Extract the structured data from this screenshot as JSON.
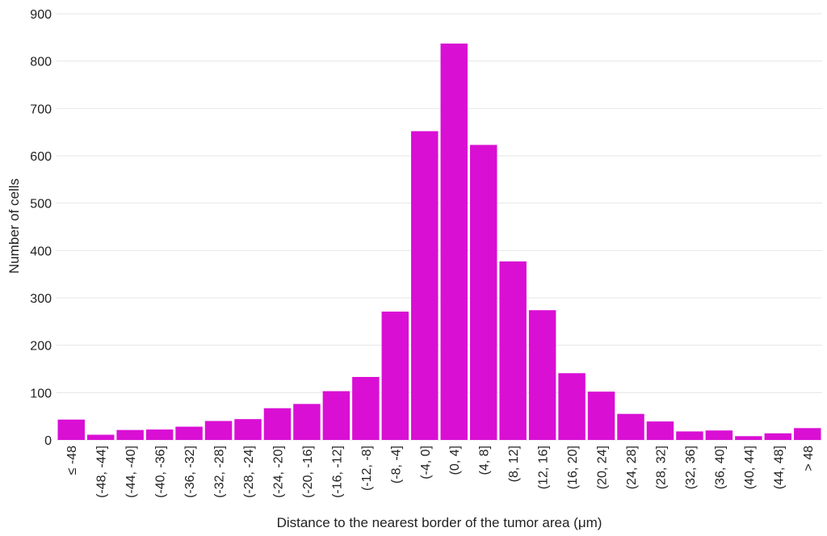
{
  "chart_data": {
    "type": "bar",
    "title": "",
    "xlabel": "Distance to the nearest border of the tumor area (μm)",
    "ylabel": "Number of cells",
    "ylim": [
      0,
      900
    ],
    "yticks": [
      "0",
      "100",
      "200",
      "300",
      "400",
      "500",
      "600",
      "700",
      "800",
      "900"
    ],
    "grid": true,
    "legend": "none",
    "bar_color": "#d90fd4",
    "categories": [
      "≤ -48",
      "(-48, -44]",
      "(-44, -40]",
      "(-40, -36]",
      "(-36, -32]",
      "(-32, -28]",
      "(-28, -24]",
      "(-24, -20]",
      "(-20, -16]",
      "(-16, -12]",
      "(-12, -8]",
      "(-8, -4]",
      "(-4, 0]",
      "(0, 4]",
      "(4, 8]",
      "(8, 12]",
      "(12, 16]",
      "(16, 20]",
      "(20, 24]",
      "(24, 28]",
      "(28, 32]",
      "(32, 36]",
      "(36, 40]",
      "(40, 44]",
      "(44, 48]",
      "> 48"
    ],
    "values": [
      43,
      11,
      21,
      22,
      28,
      40,
      44,
      67,
      76,
      103,
      133,
      271,
      652,
      837,
      623,
      377,
      274,
      141,
      102,
      55,
      39,
      18,
      20,
      8,
      14,
      25
    ]
  }
}
